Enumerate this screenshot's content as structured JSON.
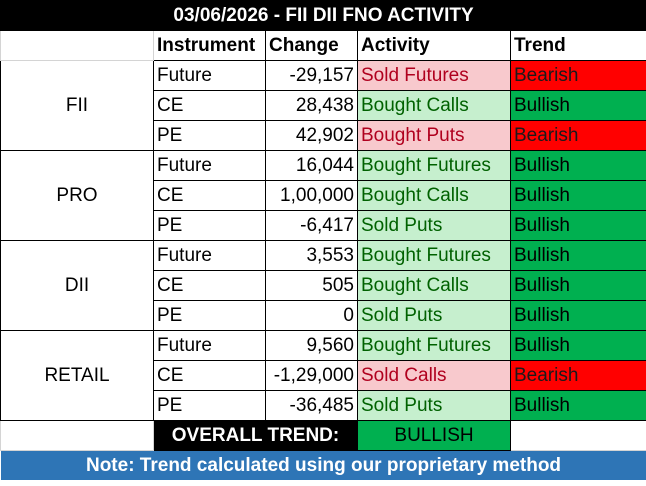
{
  "title": "03/06/2026 - FII DII FNO ACTIVITY",
  "headers": {
    "instrument": "Instrument",
    "change": "Change",
    "activity": "Activity",
    "trend": "Trend"
  },
  "groups": [
    {
      "name": "FII",
      "rows": [
        {
          "instrument": "Future",
          "change": "-29,157",
          "activity": "Sold Futures",
          "activity_type": "sold",
          "trend": "Bearish"
        },
        {
          "instrument": "CE",
          "change": "28,438",
          "activity": "Bought Calls",
          "activity_type": "bought",
          "trend": "Bullish"
        },
        {
          "instrument": "PE",
          "change": "42,902",
          "activity": "Bought Puts",
          "activity_type": "sold",
          "trend": "Bearish"
        }
      ]
    },
    {
      "name": "PRO",
      "rows": [
        {
          "instrument": "Future",
          "change": "16,044",
          "activity": "Bought Futures",
          "activity_type": "bought",
          "trend": "Bullish"
        },
        {
          "instrument": "CE",
          "change": "1,00,000",
          "activity": "Bought Calls",
          "activity_type": "bought",
          "trend": "Bullish"
        },
        {
          "instrument": "PE",
          "change": "-6,417",
          "activity": "Sold Puts",
          "activity_type": "bought",
          "trend": "Bullish"
        }
      ]
    },
    {
      "name": "DII",
      "rows": [
        {
          "instrument": "Future",
          "change": "3,553",
          "activity": "Bought Futures",
          "activity_type": "bought",
          "trend": "Bullish"
        },
        {
          "instrument": "CE",
          "change": "505",
          "activity": "Bought Calls",
          "activity_type": "bought",
          "trend": "Bullish"
        },
        {
          "instrument": "PE",
          "change": "0",
          "activity": "Sold Puts",
          "activity_type": "bought",
          "trend": "Bullish"
        }
      ]
    },
    {
      "name": "RETAIL",
      "rows": [
        {
          "instrument": "Future",
          "change": "9,560",
          "activity": "Bought Futures",
          "activity_type": "bought",
          "trend": "Bullish"
        },
        {
          "instrument": "CE",
          "change": "-1,29,000",
          "activity": "Sold Calls",
          "activity_type": "sold",
          "trend": "Bearish"
        },
        {
          "instrument": "PE",
          "change": "-36,485",
          "activity": "Sold Puts",
          "activity_type": "bought",
          "trend": "Bullish"
        }
      ]
    }
  ],
  "overall": {
    "label": "OVERALL TREND:",
    "value": "BULLISH"
  },
  "note": "Note: Trend calculated using our proprietary method",
  "colors": {
    "title_bg": "#000000",
    "sold_bg": "#f8c9cd",
    "sold_text": "#b0001e",
    "bought_bg": "#c6efce",
    "bought_text": "#006100",
    "bearish_bg": "#ff0000",
    "bullish_bg": "#00b050",
    "note_bg": "#2e75b6"
  }
}
